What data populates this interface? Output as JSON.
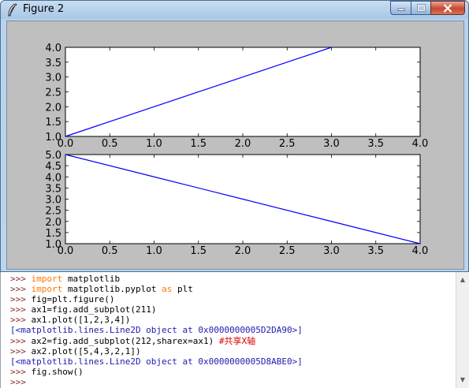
{
  "window": {
    "title": "Figure 2",
    "icon": "feather-icon",
    "controls": {
      "minimize": "minimize-icon",
      "maximize": "maximize-icon",
      "close": "close-icon"
    }
  },
  "chart_data": [
    {
      "type": "line",
      "x": [
        0,
        1,
        2,
        3
      ],
      "series": [
        {
          "values": [
            1,
            2,
            3,
            4
          ]
        }
      ],
      "xlim": [
        0,
        4
      ],
      "ylim": [
        1,
        4
      ],
      "xticks": [
        "0.0",
        "0.5",
        "1.0",
        "1.5",
        "2.0",
        "2.5",
        "3.0",
        "3.5",
        "4.0"
      ],
      "yticks": [
        "1.0",
        "1.5",
        "2.0",
        "2.5",
        "3.0",
        "3.5",
        "4.0"
      ],
      "line_color": "#0000ff",
      "grid": false
    },
    {
      "type": "line",
      "x": [
        0,
        1,
        2,
        3,
        4
      ],
      "series": [
        {
          "values": [
            5,
            4,
            3,
            2,
            1
          ]
        }
      ],
      "xlim": [
        0,
        4
      ],
      "ylim": [
        1,
        5
      ],
      "xticks": [
        "0.0",
        "0.5",
        "1.0",
        "1.5",
        "2.0",
        "2.5",
        "3.0",
        "3.5",
        "4.0"
      ],
      "yticks": [
        "1.0",
        "1.5",
        "2.0",
        "2.5",
        "3.0",
        "3.5",
        "4.0",
        "4.5",
        "5.0"
      ],
      "line_color": "#0000ff",
      "grid": false,
      "sharex": true
    }
  ],
  "shell": {
    "lines": [
      [
        {
          "t": ">>> ",
          "c": "prompt"
        },
        {
          "t": "import",
          "c": "kw"
        },
        {
          "t": " matplotlib",
          "c": "code"
        }
      ],
      [
        {
          "t": ">>> ",
          "c": "prompt"
        },
        {
          "t": "import",
          "c": "kw"
        },
        {
          "t": " matplotlib.pyplot ",
          "c": "code"
        },
        {
          "t": "as",
          "c": "kw"
        },
        {
          "t": " plt",
          "c": "code"
        }
      ],
      [
        {
          "t": ">>> ",
          "c": "prompt"
        },
        {
          "t": "fig=plt.figure()",
          "c": "code"
        }
      ],
      [
        {
          "t": ">>> ",
          "c": "prompt"
        },
        {
          "t": "ax1=fig.add_subplot(211)",
          "c": "code"
        }
      ],
      [
        {
          "t": ">>> ",
          "c": "prompt"
        },
        {
          "t": "ax1.plot([1,2,3,4])",
          "c": "code"
        }
      ],
      [
        {
          "t": "[<matplotlib.lines.Line2D object at 0x0000000005D2DA90>]",
          "c": "out"
        }
      ],
      [
        {
          "t": ">>> ",
          "c": "prompt"
        },
        {
          "t": "ax2=fig.add_subplot(212,sharex=ax1) ",
          "c": "code"
        },
        {
          "t": "#共享X轴",
          "c": "cmt"
        }
      ],
      [
        {
          "t": ">>> ",
          "c": "prompt"
        },
        {
          "t": "ax2.plot([5,4,3,2,1])",
          "c": "code"
        }
      ],
      [
        {
          "t": "[<matplotlib.lines.Line2D object at 0x0000000005D8ABE0>]",
          "c": "out"
        }
      ],
      [
        {
          "t": ">>> ",
          "c": "prompt"
        },
        {
          "t": "fig.show()",
          "c": "code"
        }
      ],
      [
        {
          "t": ">>> ",
          "c": "prompt"
        }
      ]
    ]
  }
}
